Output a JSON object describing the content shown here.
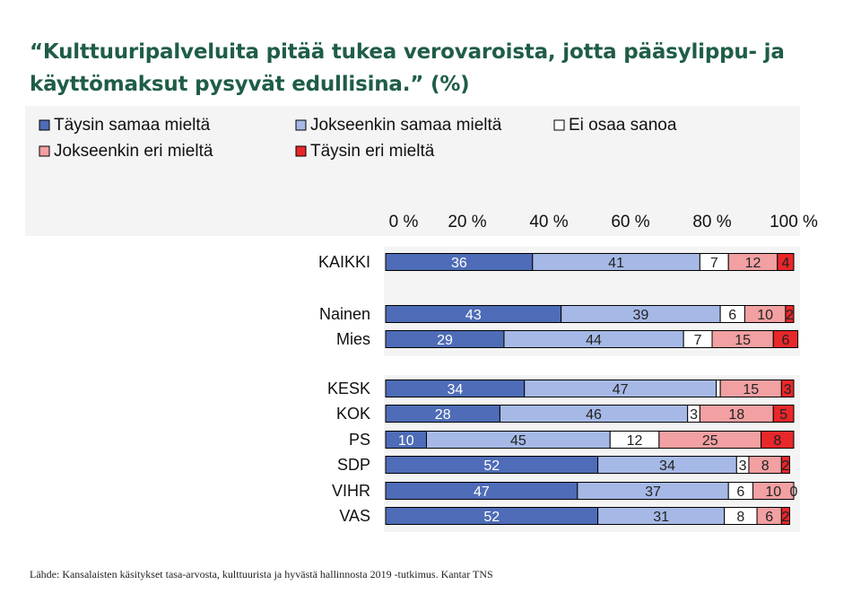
{
  "title": "“Kulttuuripalveluita pitää tukea verovaroista, jotta pääsylippu- ja käyttömaksut pysyvät edullisina.” (%)",
  "footnote": "Lähde: Kansalaisten käsitykset tasa-arvosta, kulttuurista ja hyvästä hallinnosta 2019 -tutkimus. Kantar TNS",
  "chart_data": {
    "type": "bar",
    "orientation": "horizontal",
    "stacked": true,
    "title": "“Kulttuuripalveluita pitää tukea verovaroista, jotta pääsylippu- ja käyttömaksut pysyvät edullisina.” (%)",
    "xlabel": "",
    "ylabel": "",
    "xlim": [
      0,
      100
    ],
    "x_ticks": [
      "0 %",
      "20 %",
      "40 %",
      "60 %",
      "80 %",
      "100 %"
    ],
    "legend_position": "top-left",
    "groups": [
      [
        "KAIKKI"
      ],
      [
        "Nainen",
        "Mies"
      ],
      [
        "KESK",
        "KOK",
        "PS",
        "SDP",
        "VIHR",
        "VAS"
      ]
    ],
    "categories": [
      "KAIKKI",
      "Nainen",
      "Mies",
      "KESK",
      "KOK",
      "PS",
      "SDP",
      "VIHR",
      "VAS"
    ],
    "series": [
      {
        "name": "Täysin samaa mieltä",
        "color": "#4e6cb7",
        "text_color": "#ffffff",
        "values": [
          36,
          43,
          29,
          34,
          28,
          10,
          52,
          47,
          52
        ]
      },
      {
        "name": "Jokseenkin samaa mieltä",
        "color": "#a6b9e6",
        "text_color": "#222222",
        "values": [
          41,
          39,
          44,
          47,
          46,
          45,
          34,
          37,
          31
        ]
      },
      {
        "name": "Ei osaa sanoa",
        "color": "#ffffff",
        "text_color": "#222222",
        "values": [
          7,
          6,
          7,
          1,
          3,
          12,
          3,
          6,
          8
        ]
      },
      {
        "name": "Jokseenkin eri mieltä",
        "color": "#f2a0a2",
        "text_color": "#222222",
        "values": [
          12,
          10,
          15,
          15,
          18,
          25,
          8,
          10,
          6
        ]
      },
      {
        "name": "Täysin eri mieltä",
        "color": "#e8272a",
        "text_color": "#222222",
        "values": [
          4,
          2,
          6,
          3,
          5,
          8,
          2,
          0,
          2
        ]
      }
    ],
    "data_labels": [
      [
        "36",
        "41",
        "7",
        "12",
        "4"
      ],
      [
        "43",
        "39",
        "6",
        "10",
        "2"
      ],
      [
        "29",
        "44",
        "7",
        "15",
        "6"
      ],
      [
        "34",
        "47",
        "",
        "15",
        "3"
      ],
      [
        "28",
        "46",
        "3",
        "18",
        "5"
      ],
      [
        "10",
        "45",
        "12",
        "25",
        "8"
      ],
      [
        "52",
        "34",
        "3",
        "8",
        "2"
      ],
      [
        "47",
        "37",
        "6",
        "10",
        "0"
      ],
      [
        "52",
        "31",
        "8",
        "6",
        "2"
      ]
    ]
  }
}
